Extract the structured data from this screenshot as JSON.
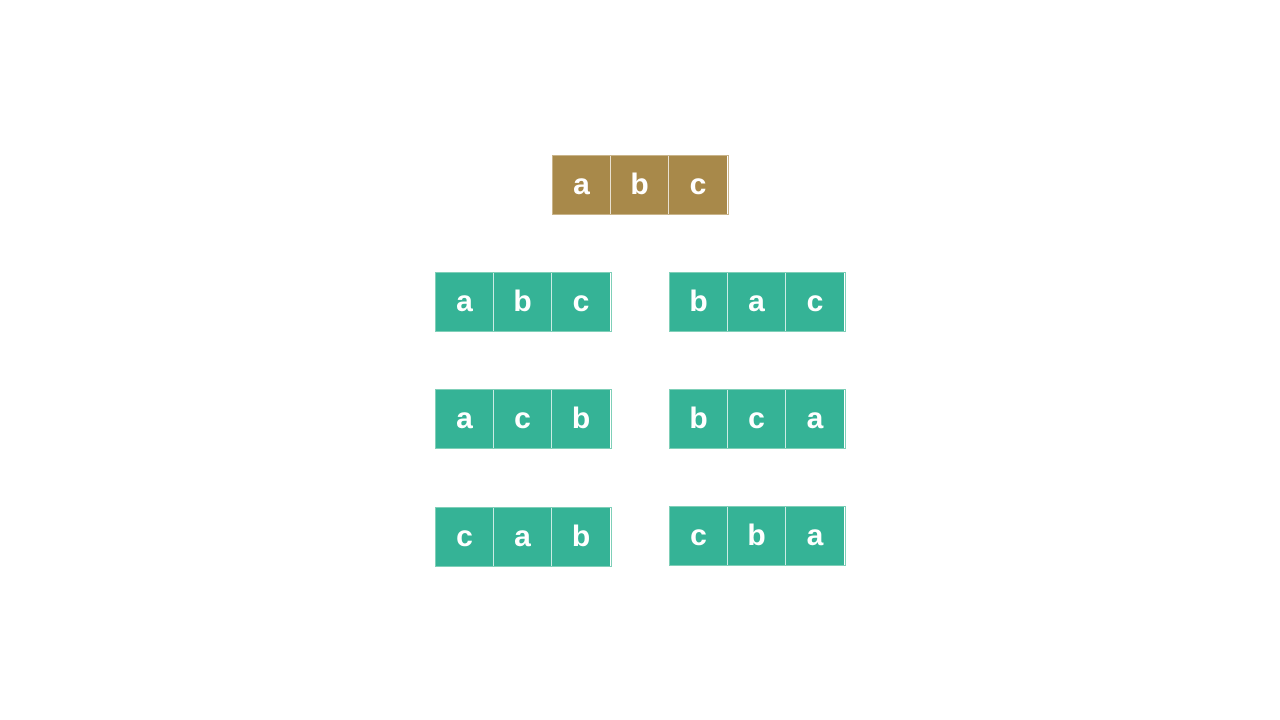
{
  "colors": {
    "source": "#a8894a",
    "permutation": "#35b396"
  },
  "source": [
    "a",
    "b",
    "c"
  ],
  "permutations": [
    [
      "a",
      "b",
      "c"
    ],
    [
      "b",
      "a",
      "c"
    ],
    [
      "a",
      "c",
      "b"
    ],
    [
      "b",
      "c",
      "a"
    ],
    [
      "c",
      "a",
      "b"
    ],
    [
      "c",
      "b",
      "a"
    ]
  ]
}
